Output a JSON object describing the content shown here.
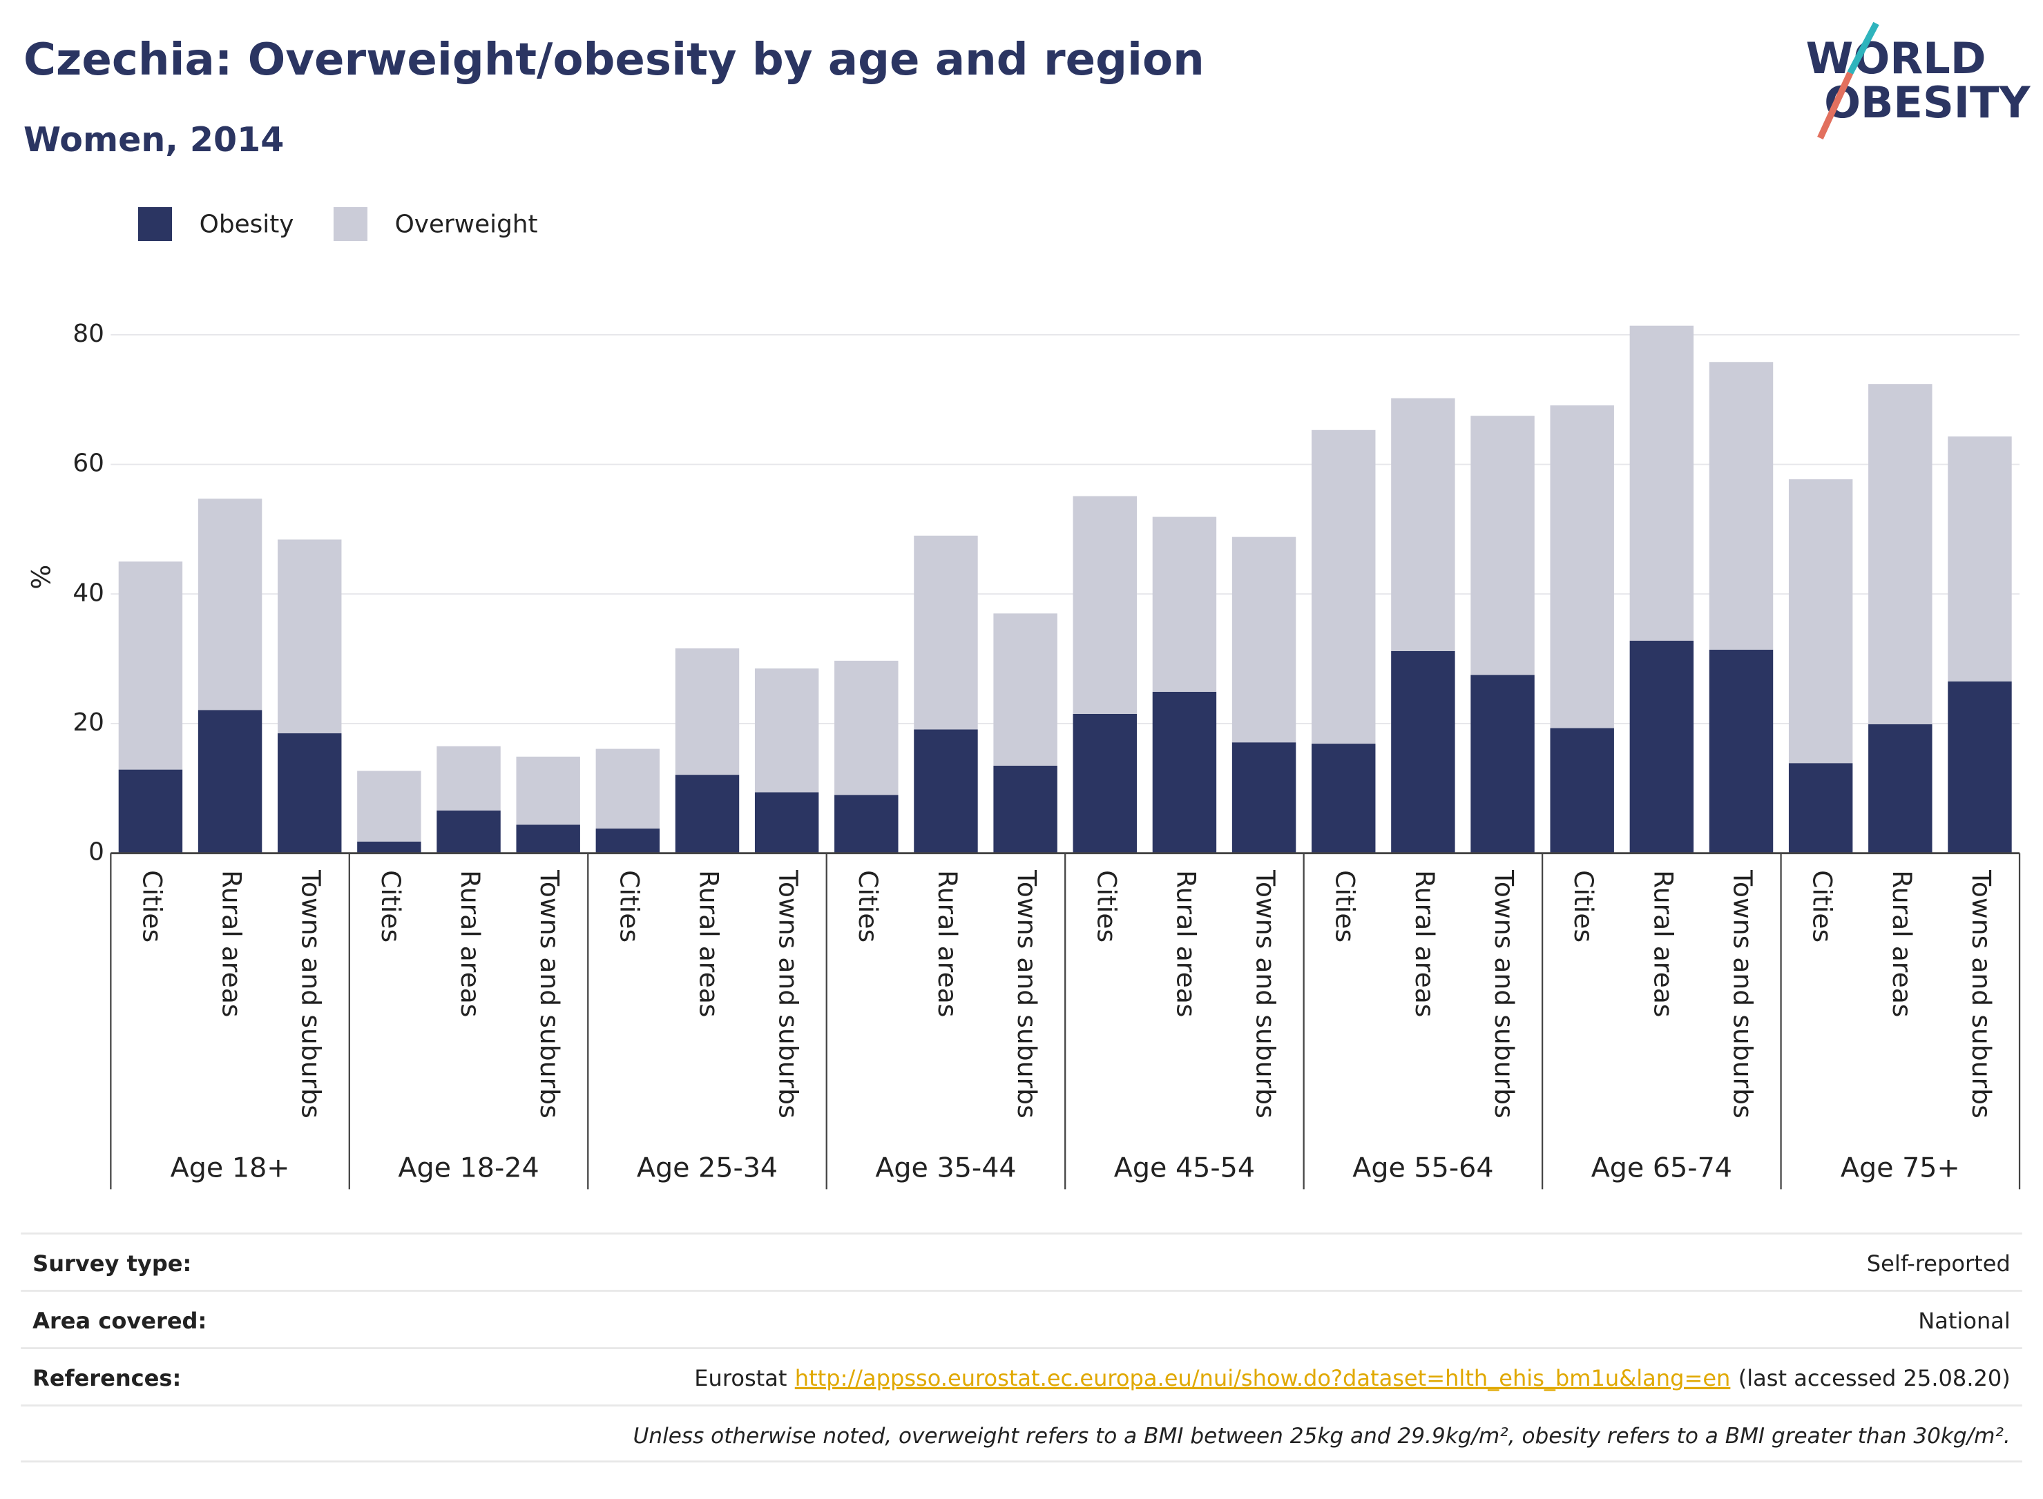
{
  "chart_data": {
    "type": "stacked_bar",
    "title": "Czechia: Overweight/obesity by age and region",
    "subtitle": "Women, 2014",
    "y_label": "%",
    "categories": [
      "Cities",
      "Rural areas",
      "Towns and suburbs",
      "Cities",
      "Rural areas",
      "Towns and suburbs",
      "Cities",
      "Rural areas",
      "Towns and suburbs",
      "Cities",
      "Rural areas",
      "Towns and suburbs",
      "Cities",
      "Rural areas",
      "Towns and suburbs",
      "Cities",
      "Rural areas",
      "Towns and suburbs",
      "Cities",
      "Rural areas",
      "Towns and suburbs",
      "Cities",
      "Rural areas",
      "Towns and suburbs"
    ],
    "groups": [
      "Age 18+",
      "Age 18-24",
      "Age 25-34",
      "Age 35-44",
      "Age 45-54",
      "Age 55-64",
      "Age 65-74",
      "Age 75+"
    ],
    "series": [
      {
        "name": "Obesity",
        "color": "#2b3562",
        "values": [
          12.9,
          22.1,
          18.5,
          1.8,
          6.6,
          4.4,
          3.8,
          12.1,
          9.4,
          9.0,
          19.1,
          13.5,
          21.5,
          24.9,
          17.1,
          16.9,
          31.2,
          27.5,
          19.3,
          32.8,
          31.4,
          13.9,
          19.9,
          26.5
        ]
      },
      {
        "name": "Overweight",
        "color": "#cbccd8",
        "values": [
          32.1,
          32.6,
          29.9,
          10.9,
          9.9,
          10.5,
          12.3,
          19.5,
          19.1,
          20.7,
          29.9,
          23.5,
          33.6,
          27.0,
          31.7,
          48.4,
          39.0,
          40.0,
          49.8,
          48.6,
          44.4,
          43.8,
          52.5,
          37.8
        ]
      }
    ],
    "ylim": [
      0,
      82
    ],
    "yticks": [
      0,
      20,
      40,
      60,
      80
    ],
    "grid": true,
    "legend": "top-left"
  },
  "logo": {
    "line1": "WORLD",
    "line2": "OBESITY"
  },
  "footer": {
    "rows": [
      {
        "label": "Survey type:",
        "value": "Self-reported"
      },
      {
        "label": "Area covered:",
        "value": "National"
      },
      {
        "label": "References:",
        "source": "Eurostat",
        "link": "http://appsso.eurostat.ec.europa.eu/nui/show.do?dataset=hlth_ehis_bm1u&lang=en",
        "note": "(last accessed 25.08.20)"
      }
    ],
    "note": "Unless otherwise noted, overweight refers to a BMI between 25kg and 29.9kg/m², obesity refers to a BMI greater than 30kg/m²."
  }
}
